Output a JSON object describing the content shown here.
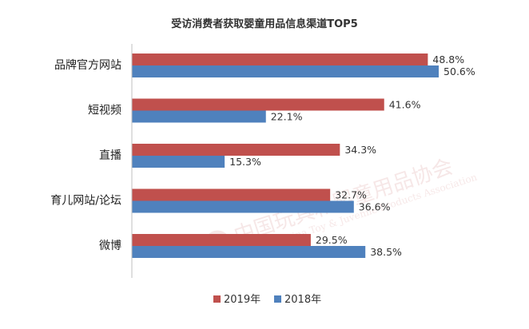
{
  "chart_data": {
    "type": "bar",
    "orientation": "horizontal",
    "title": "受访消费者获取婴童用品信息渠道TOP5",
    "categories": [
      "品牌官方网站",
      "短视频",
      "直播",
      "育儿网站/论坛",
      "微博"
    ],
    "series": [
      {
        "name": "2019年",
        "color": "#C0504D",
        "values": [
          48.8,
          41.6,
          34.3,
          32.7,
          29.5
        ],
        "labels": [
          "48.8%",
          "41.6%",
          "34.3%",
          "32.7%",
          "29.5%"
        ]
      },
      {
        "name": "2018年",
        "color": "#4F81BD",
        "values": [
          50.6,
          22.1,
          15.3,
          36.6,
          38.5
        ],
        "labels": [
          "50.6%",
          "22.1%",
          "15.3%",
          "36.6%",
          "38.5%"
        ]
      }
    ],
    "xlabel": "",
    "ylabel": "",
    "xlim": [
      0,
      60
    ],
    "grid": false,
    "legend_position": "bottom"
  },
  "watermark": {
    "text_cn": "中国玩具和婴童用品协会",
    "text_en": "China Toy & Juvenile Products Association"
  }
}
